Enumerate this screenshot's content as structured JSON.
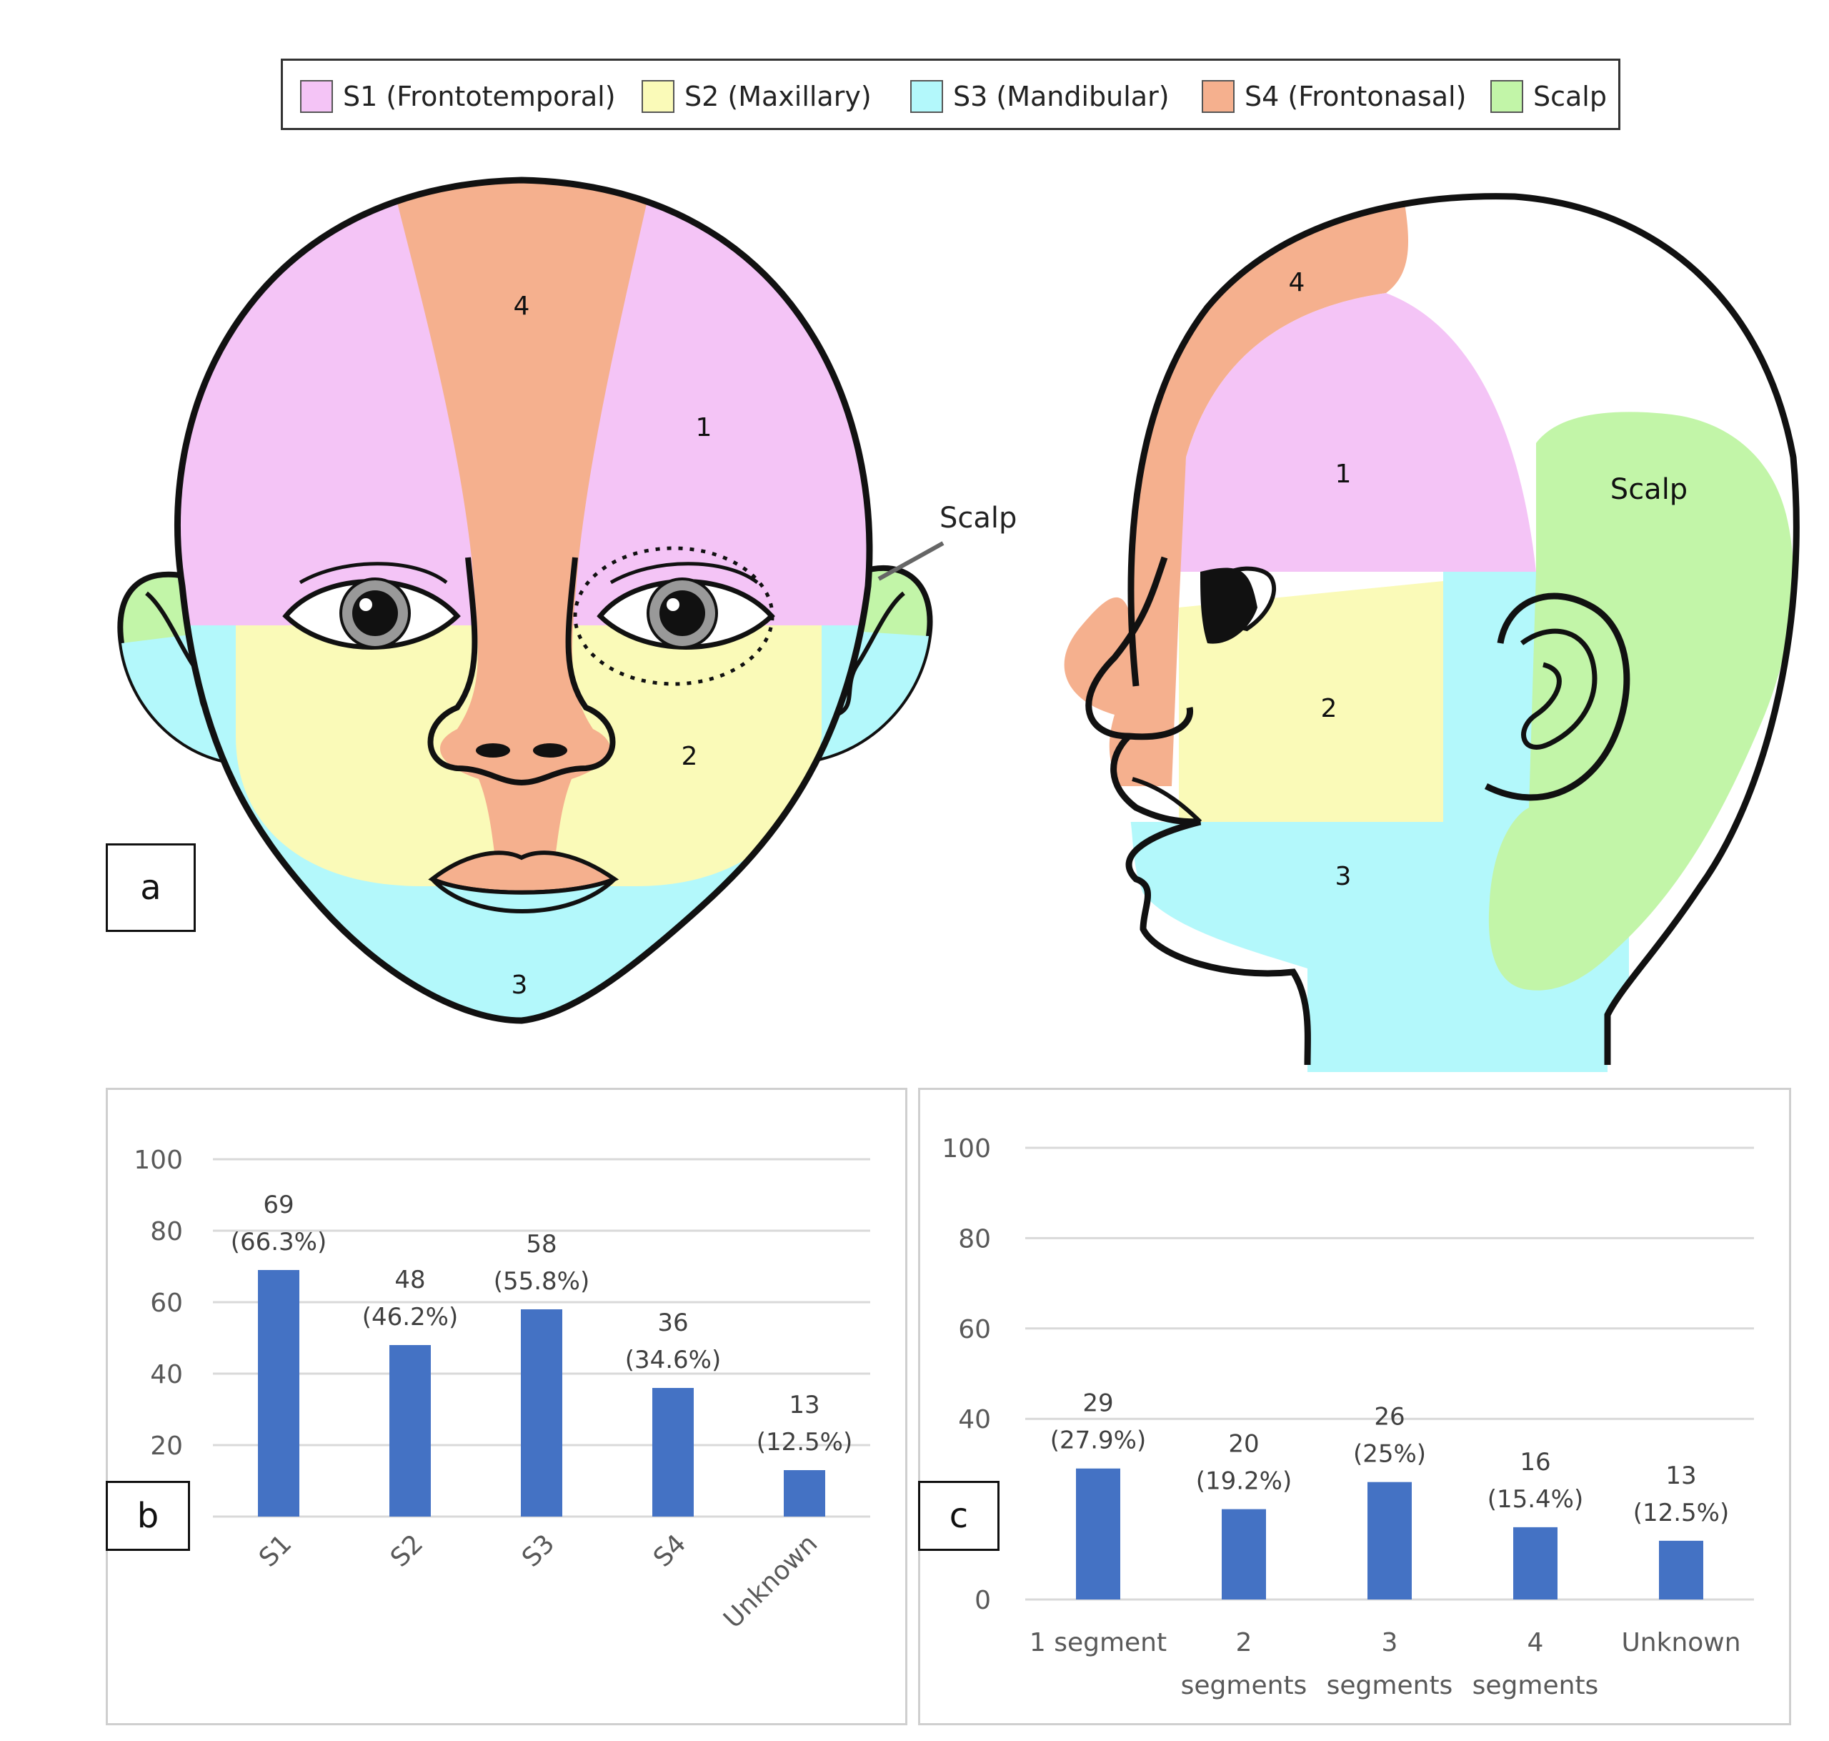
{
  "legend": [
    {
      "label": "S1 (Frontotemporal)",
      "color": "#f4c4f6"
    },
    {
      "label": "S2 (Maxillary)",
      "color": "#fafab8"
    },
    {
      "label": "S3 (Mandibular)",
      "color": "#b3f8fb"
    },
    {
      "label": "S4 (Frontonasal)",
      "color": "#f5b08e"
    },
    {
      "label": "Scalp",
      "color": "#c2f5a8"
    }
  ],
  "face": {
    "front_labels": {
      "s4": "4",
      "s1": "1",
      "s2": "2",
      "s3": "3",
      "scalp": "Scalp"
    },
    "side_labels": {
      "s4": "4",
      "s1": "1",
      "s2": "2",
      "s3": "3",
      "scalp": "Scalp"
    }
  },
  "panel_labels": {
    "a": "a",
    "b": "b",
    "c": "c"
  },
  "chart_data": [
    {
      "type": "bar",
      "categories": [
        "S1",
        "S2",
        "S3",
        "S4",
        "Unknown"
      ],
      "values": [
        69,
        48,
        58,
        36,
        13
      ],
      "data_labels": [
        [
          "69",
          "(66.3%)"
        ],
        [
          "48",
          "(46.2%)"
        ],
        [
          "58",
          "(55.8%)"
        ],
        [
          "36",
          "(34.6%)"
        ],
        [
          "13",
          "(12.5%)"
        ]
      ],
      "yticks": [
        "20",
        "40",
        "60",
        "80",
        "100"
      ],
      "ylim": [
        0,
        100
      ],
      "grid": true,
      "bar_color": "#4472c4"
    },
    {
      "type": "bar",
      "categories": [
        [
          "1 segment"
        ],
        [
          "2",
          "segments"
        ],
        [
          "3",
          "segments"
        ],
        [
          "4",
          "segments"
        ],
        [
          "Unknown"
        ]
      ],
      "values": [
        29,
        20,
        26,
        16,
        13
      ],
      "data_labels": [
        [
          "29",
          "(27.9%)"
        ],
        [
          "20",
          "(19.2%)"
        ],
        [
          "26",
          "(25%)"
        ],
        [
          "16",
          "(15.4%)"
        ],
        [
          "13",
          "(12.5%)"
        ]
      ],
      "yticks": [
        "0",
        "40",
        "60",
        "80",
        "100"
      ],
      "ylim": [
        0,
        100
      ],
      "grid": true,
      "bar_color": "#4472c4"
    }
  ]
}
